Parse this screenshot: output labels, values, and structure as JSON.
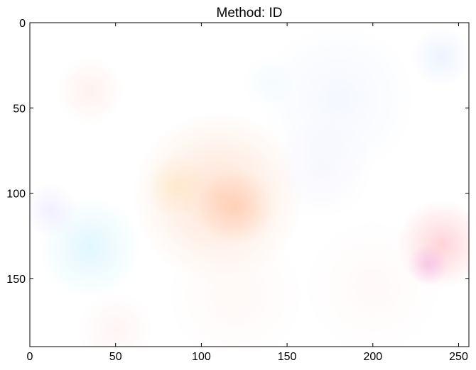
{
  "chart_data": {
    "type": "heatmap",
    "title": "Method: ID",
    "xlabel": "",
    "ylabel": "",
    "xlim": [
      0,
      256
    ],
    "ylim": [
      190,
      0
    ],
    "x_ticks": [
      {
        "value": 0,
        "label": "0"
      },
      {
        "value": 50,
        "label": "50"
      },
      {
        "value": 100,
        "label": "100"
      },
      {
        "value": 150,
        "label": "150"
      },
      {
        "value": 200,
        "label": "200"
      },
      {
        "value": 250,
        "label": "250"
      }
    ],
    "y_ticks": [
      {
        "value": 0,
        "label": "0"
      },
      {
        "value": 50,
        "label": "50"
      },
      {
        "value": 100,
        "label": "100"
      },
      {
        "value": 150,
        "label": "150"
      }
    ],
    "grid": false,
    "background_color": "#ffffff",
    "blobs": [
      {
        "x": 110,
        "y": 102,
        "r": 50,
        "color": "#ffc8a8",
        "opacity": 0.55
      },
      {
        "x": 120,
        "y": 108,
        "r": 22,
        "color": "#ffb48f",
        "opacity": 0.45
      },
      {
        "x": 85,
        "y": 96,
        "r": 18,
        "color": "#ffe2b0",
        "opacity": 0.45
      },
      {
        "x": 240,
        "y": 130,
        "r": 26,
        "color": "#ffb0b8",
        "opacity": 0.55
      },
      {
        "x": 232,
        "y": 142,
        "r": 12,
        "color": "#f0a0e0",
        "opacity": 0.5
      },
      {
        "x": 35,
        "y": 132,
        "r": 30,
        "color": "#c8f0ff",
        "opacity": 0.55
      },
      {
        "x": 12,
        "y": 110,
        "r": 16,
        "color": "#e0d8ff",
        "opacity": 0.4
      },
      {
        "x": 35,
        "y": 40,
        "r": 20,
        "color": "#ffd8d0",
        "opacity": 0.35
      },
      {
        "x": 180,
        "y": 45,
        "r": 45,
        "color": "#e4ecff",
        "opacity": 0.4
      },
      {
        "x": 240,
        "y": 20,
        "r": 18,
        "color": "#d8e4ff",
        "opacity": 0.45
      },
      {
        "x": 140,
        "y": 35,
        "r": 16,
        "color": "#e0f4ff",
        "opacity": 0.35
      },
      {
        "x": 170,
        "y": 85,
        "r": 30,
        "color": "#eae8ff",
        "opacity": 0.35
      },
      {
        "x": 50,
        "y": 180,
        "r": 22,
        "color": "#ffe4e4",
        "opacity": 0.4
      },
      {
        "x": 120,
        "y": 160,
        "r": 40,
        "color": "#fff0ec",
        "opacity": 0.45
      },
      {
        "x": 200,
        "y": 155,
        "r": 40,
        "color": "#fff0ee",
        "opacity": 0.4
      }
    ]
  }
}
